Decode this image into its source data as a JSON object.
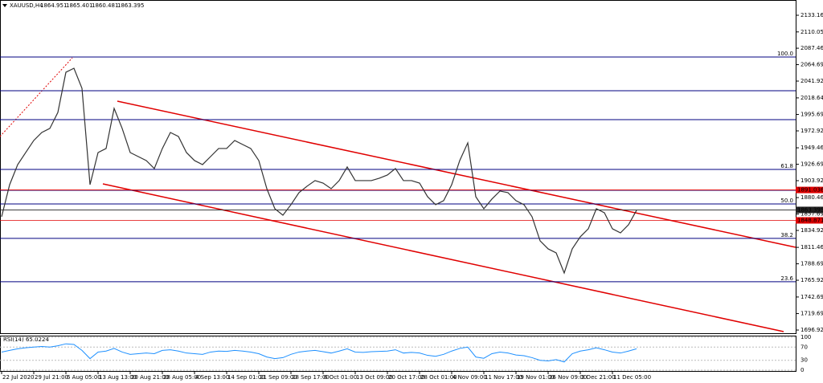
{
  "chart_data": {
    "type": "line",
    "symbol": "XAUUSD,H4",
    "ohlc": [
      1864.951,
      1865.401,
      1860.481,
      1863.395
    ],
    "categories": [
      "22 Jul 2020",
      null,
      null,
      null,
      "29 Jul 21:00",
      null,
      null,
      null,
      "6 Aug 05:00",
      null,
      null,
      null,
      "13 Aug 13:00",
      null,
      null,
      null,
      "20 Aug 21:00",
      null,
      null,
      null,
      "28 Aug 05:00",
      null,
      null,
      null,
      "4 Sep 13:00",
      null,
      null,
      null,
      "14 Sep 01:00",
      null,
      null,
      null,
      "21 Sep 09:00",
      null,
      null,
      null,
      "28 Sep 17:00",
      null,
      null,
      null,
      "6 Oct 01:00",
      null,
      null,
      null,
      "13 Oct 09:00",
      null,
      null,
      null,
      "20 Oct 17:00",
      null,
      null,
      null,
      "28 Oct 01:00",
      null,
      null,
      null,
      "4 Nov 09:00",
      null,
      null,
      null,
      "11 Nov 17:00",
      null,
      null,
      null,
      "19 Nov 01:00",
      null,
      null,
      null,
      "26 Nov 09:00",
      null,
      null,
      null,
      "3 Dec 21:00",
      null,
      null,
      null,
      "11 Dec 05:00",
      null,
      null,
      null
    ],
    "series": [
      {
        "color": "#333333",
        "values": [
          1853.9,
          1898.4,
          1926.2,
          1942.9,
          1959.6,
          1970.7,
          1976.3,
          1998.5,
          2054.2,
          2059.7,
          2031.9,
          1898.4,
          1942.9,
          1948.5,
          2004.1,
          1976.3,
          1942.9,
          1937.3,
          1931.8,
          1920.7,
          1948.5,
          1970.7,
          1965.2,
          1942.9,
          1931.8,
          1926.2,
          1937.3,
          1948.5,
          1948.5,
          1959.6,
          1954.0,
          1948.5,
          1931.8,
          1892.8,
          1865.0,
          1856.1,
          1870.6,
          1887.3,
          1896.2,
          1904.0,
          1900.6,
          1892.8,
          1904.0,
          1922.9,
          1904.0,
          1904.0,
          1904.0,
          1907.3,
          1911.8,
          1920.7,
          1904.0,
          1904.0,
          1900.6,
          1881.7,
          1870.6,
          1876.2,
          1898.4,
          1931.8,
          1956.3,
          1881.7,
          1865.0,
          1878.4,
          1889.5,
          1887.3,
          1876.2,
          1870.6,
          1853.9,
          1820.5,
          1809.4,
          1803.8,
          1776.0,
          1809.4,
          1826.1,
          1837.2,
          1865.0,
          1859.5,
          1837.2,
          1831.6,
          1842.8,
          1862.8
        ]
      }
    ],
    "ylim": [
      1692.5,
      2154.3
    ],
    "yticks": [
      {
        "value": 2133.16,
        "label": "2133.160"
      },
      {
        "value": 2110.05,
        "label": "2110.050"
      },
      {
        "value": 2087.46,
        "label": "2087.460"
      },
      {
        "value": 2064.69,
        "label": "2064.690"
      },
      {
        "value": 2041.92,
        "label": "2041.920"
      },
      {
        "value": 2018.64,
        "label": "2018.640"
      },
      {
        "value": 1995.69,
        "label": "1995.690"
      },
      {
        "value": 1972.92,
        "label": "1972.920"
      },
      {
        "value": 1949.46,
        "label": "1949.460"
      },
      {
        "value": 1926.69,
        "label": "1926.690"
      },
      {
        "value": 1903.92,
        "label": "1903.920"
      },
      {
        "value": 1880.46,
        "label": "1880.460"
      },
      {
        "value": 1857.69,
        "label": "1857.690"
      },
      {
        "value": 1834.92,
        "label": "1834.920"
      },
      {
        "value": 1811.46,
        "label": "1811.460"
      },
      {
        "value": 1788.69,
        "label": "1788.690"
      },
      {
        "value": 1765.92,
        "label": "1765.920"
      },
      {
        "value": 1742.69,
        "label": "1742.690"
      },
      {
        "value": 1719.69,
        "label": "1719.690"
      },
      {
        "value": 1696.92,
        "label": "1696.920"
      }
    ],
    "fib_levels": [
      {
        "label": "100.0",
        "price": 2075.3
      },
      {
        "label": "61.8",
        "price": 1919.5
      },
      {
        "label": "50.0",
        "price": 1871.7
      },
      {
        "label": "38.2",
        "price": 1823.9
      },
      {
        "label": "23.6",
        "price": 1763.8
      }
    ],
    "levels": [
      2028.6,
      1988.5,
      1890.6
    ],
    "price_tags": [
      {
        "value": 1891.036,
        "color": "#e00000"
      },
      {
        "value": 1863.395,
        "color": "#222222"
      },
      {
        "value": 1848.871,
        "color": "#e00000"
      }
    ],
    "rsi": {
      "label": "RSI(14) 65.0224",
      "ylim": [
        0,
        100
      ],
      "yticks": [
        100,
        70,
        30,
        0
      ],
      "color": "#1e90ff",
      "values": [
        55,
        60,
        65,
        68,
        70,
        72,
        70,
        74,
        80,
        78,
        60,
        35,
        55,
        58,
        66,
        55,
        48,
        50,
        52,
        50,
        60,
        62,
        58,
        52,
        50,
        48,
        55,
        58,
        57,
        60,
        58,
        55,
        50,
        40,
        35,
        38,
        48,
        55,
        58,
        60,
        56,
        52,
        58,
        65,
        55,
        54,
        56,
        57,
        58,
        62,
        52,
        54,
        52,
        45,
        42,
        48,
        58,
        66,
        70,
        40,
        36,
        50,
        55,
        52,
        46,
        44,
        38,
        30,
        28,
        32,
        25,
        50,
        58,
        62,
        68,
        62,
        55,
        52,
        58,
        65
      ]
    }
  }
}
